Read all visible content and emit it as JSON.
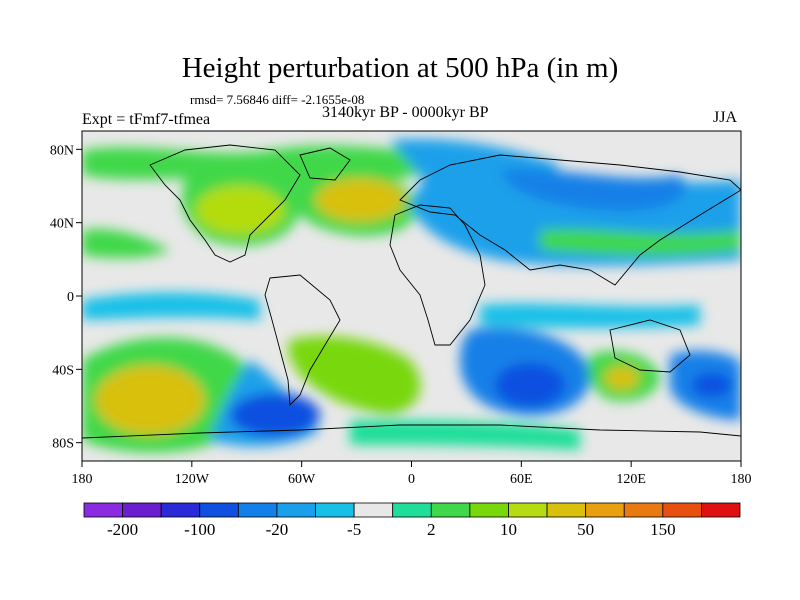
{
  "title": "Height perturbation at 500 hPa (in m)",
  "stats": "rmsd= 7.56846 diff= -2.1655e-08",
  "expt": "Expt = tFmf7-tfmea",
  "period": "3140kyr BP - 0000kyr BP",
  "season": "JJA",
  "lat_ticks": [
    {
      "value": 80,
      "label": "80N"
    },
    {
      "value": 40,
      "label": "40N"
    },
    {
      "value": 0,
      "label": "0"
    },
    {
      "value": -40,
      "label": "40S"
    },
    {
      "value": -80,
      "label": "80S"
    }
  ],
  "lon_ticks": [
    {
      "value": -180,
      "label": "180"
    },
    {
      "value": -120,
      "label": "120W"
    },
    {
      "value": -60,
      "label": "60W"
    },
    {
      "value": 0,
      "label": "0"
    },
    {
      "value": 60,
      "label": "60E"
    },
    {
      "value": 120,
      "label": "120E"
    },
    {
      "value": 180,
      "label": "180"
    }
  ],
  "colorbar": {
    "colors": [
      "#8a2be2",
      "#6a1ed0",
      "#2a2ad8",
      "#1050e0",
      "#1280e8",
      "#1aa0ea",
      "#18c0e8",
      "#e8e8e8",
      "#1ede9a",
      "#40d84a",
      "#78d80c",
      "#b4dc10",
      "#d8c00c",
      "#e8a010",
      "#e87a10",
      "#e85010",
      "#e01010"
    ],
    "labels": [
      {
        "boundary": 1,
        "text": "-200"
      },
      {
        "boundary": 3,
        "text": "-100"
      },
      {
        "boundary": 5,
        "text": "-20"
      },
      {
        "boundary": 7,
        "text": "-5"
      },
      {
        "boundary": 9,
        "text": "2"
      },
      {
        "boundary": 11,
        "text": "10"
      },
      {
        "boundary": 13,
        "text": "50"
      },
      {
        "boundary": 15,
        "text": "150"
      }
    ]
  },
  "chart_data": {
    "type": "heatmap",
    "projection": "cylindrical equidistant",
    "lon_range": [
      -180,
      180
    ],
    "lat_range": [
      -90,
      90
    ],
    "field": "500 hPa geopotential height difference (m)",
    "features": [
      {
        "name": "North Pacific positive anomaly",
        "lon": -150,
        "lat": 62,
        "value": 10
      },
      {
        "name": "North America positive anomaly",
        "lon": -95,
        "lat": 50,
        "value": 30
      },
      {
        "name": "North Atlantic positive anomaly",
        "lon": -25,
        "lat": 50,
        "value": 40
      },
      {
        "name": "Arctic negative anomaly",
        "lon": 10,
        "lat": 78,
        "value": -20
      },
      {
        "name": "Eurasia negative anomaly",
        "lon": 80,
        "lat": 60,
        "value": -20
      },
      {
        "name": "South Pacific positive anomaly",
        "lon": -140,
        "lat": -58,
        "value": 50
      },
      {
        "name": "South Atlantic positive anomaly",
        "lon": -35,
        "lat": -42,
        "value": 20
      },
      {
        "name": "Southern Ocean negative anomaly",
        "lon": -75,
        "lat": -65,
        "value": -100
      },
      {
        "name": "Indian Ocean negative anomaly",
        "lon": 60,
        "lat": -55,
        "value": -100
      },
      {
        "name": "Australia positive anomaly",
        "lon": 120,
        "lat": -45,
        "value": 30
      },
      {
        "name": "Southwest Pacific negative anomaly",
        "lon": 160,
        "lat": -55,
        "value": -40
      }
    ]
  }
}
